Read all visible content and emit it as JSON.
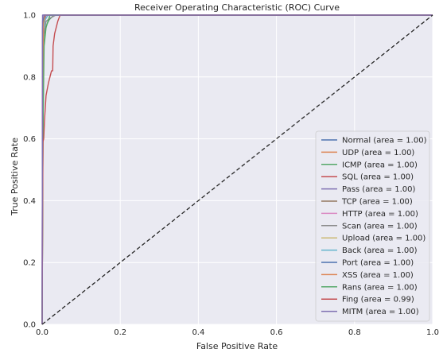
{
  "chart_data": {
    "type": "line",
    "title": "Receiver Operating Characteristic (ROC) Curve",
    "xlabel": "False Positive Rate",
    "ylabel": "True Positive Rate",
    "xlim": [
      0.0,
      1.0
    ],
    "ylim": [
      0.0,
      1.0
    ],
    "xticks": [
      "0.0",
      "0.2",
      "0.4",
      "0.6",
      "0.8",
      "1.0"
    ],
    "yticks": [
      "0.0",
      "0.2",
      "0.4",
      "0.6",
      "0.8",
      "1.0"
    ],
    "grid": true,
    "legend_position": "lower-right",
    "background": "#eaeaf2",
    "diagonal": {
      "x": [
        0,
        1
      ],
      "y": [
        0,
        1
      ],
      "style": "dashed",
      "color": "#262626"
    },
    "series": [
      {
        "name": "Normal (area = 1.00)",
        "color": "#4c72b0",
        "x": [
          0,
          0.001,
          0.003,
          1
        ],
        "y": [
          0,
          0.96,
          1.0,
          1.0
        ]
      },
      {
        "name": "UDP (area = 1.00)",
        "color": "#dd8452",
        "x": [
          0,
          0.002,
          0.006,
          1
        ],
        "y": [
          0,
          0.97,
          1.0,
          1.0
        ]
      },
      {
        "name": "ICMP (area = 1.00)",
        "color": "#55a868",
        "x": [
          0,
          0.002,
          0.004,
          0.008,
          0.012,
          0.018,
          0.03,
          1
        ],
        "y": [
          0,
          0.6,
          0.9,
          0.95,
          0.97,
          0.985,
          1.0,
          1.0
        ]
      },
      {
        "name": "SQL (area = 1.00)",
        "color": "#c44e52",
        "x": [
          0,
          0.001,
          0.003,
          0.006,
          1
        ],
        "y": [
          0,
          0.95,
          0.98,
          1.0,
          1.0
        ]
      },
      {
        "name": "Pass (area = 1.00)",
        "color": "#8172b3",
        "x": [
          0,
          0.001,
          0.004,
          0.01,
          1
        ],
        "y": [
          0,
          0.92,
          0.97,
          1.0,
          1.0
        ]
      },
      {
        "name": "TCP (area = 1.00)",
        "color": "#937860",
        "x": [
          0,
          0.002,
          0.005,
          1
        ],
        "y": [
          0,
          0.97,
          1.0,
          1.0
        ]
      },
      {
        "name": "HTTP (area = 1.00)",
        "color": "#da8bc3",
        "x": [
          0,
          0.001,
          0.003,
          1
        ],
        "y": [
          0,
          0.98,
          1.0,
          1.0
        ]
      },
      {
        "name": "Scan (area = 1.00)",
        "color": "#8c8c8c",
        "x": [
          0,
          0.003,
          0.01,
          0.02,
          0.035,
          1
        ],
        "y": [
          0,
          0.93,
          0.98,
          0.99,
          1.0,
          1.0
        ]
      },
      {
        "name": "Upload (area = 1.00)",
        "color": "#ccb974",
        "x": [
          0,
          0.002,
          0.006,
          1
        ],
        "y": [
          0,
          0.96,
          1.0,
          1.0
        ]
      },
      {
        "name": "Back (area = 1.00)",
        "color": "#64b5cd",
        "x": [
          0,
          0.002,
          0.008,
          0.015,
          1
        ],
        "y": [
          0,
          0.95,
          0.985,
          1.0,
          1.0
        ]
      },
      {
        "name": "Port (area = 1.00)",
        "color": "#4c72b0",
        "x": [
          0,
          0.002,
          0.006,
          1
        ],
        "y": [
          0,
          0.98,
          1.0,
          1.0
        ]
      },
      {
        "name": "XSS (area = 1.00)",
        "color": "#dd8452",
        "x": [
          0,
          0.003,
          0.008,
          1
        ],
        "y": [
          0,
          0.97,
          1.0,
          1.0
        ]
      },
      {
        "name": "Rans (area = 1.00)",
        "color": "#55a868",
        "x": [
          0,
          0.002,
          0.005,
          0.01,
          0.02,
          1
        ],
        "y": [
          0,
          0.62,
          0.9,
          0.96,
          1.0,
          1.0
        ]
      },
      {
        "name": "Fing (area = 0.99)",
        "color": "#c44e52",
        "x": [
          0,
          0.002,
          0.004,
          0.006,
          0.008,
          0.01,
          0.013,
          0.016,
          0.02,
          0.024,
          0.027,
          0.028,
          0.032,
          0.036,
          0.04,
          0.043,
          0.046,
          1
        ],
        "y": [
          0,
          0.59,
          0.6,
          0.66,
          0.7,
          0.74,
          0.76,
          0.78,
          0.8,
          0.82,
          0.82,
          0.9,
          0.94,
          0.96,
          0.98,
          0.99,
          1.0,
          1.0
        ]
      },
      {
        "name": "MITM (area = 1.00)",
        "color": "#8172b3",
        "x": [
          0,
          0.001,
          1
        ],
        "y": [
          0,
          1.0,
          1.0
        ]
      }
    ]
  }
}
